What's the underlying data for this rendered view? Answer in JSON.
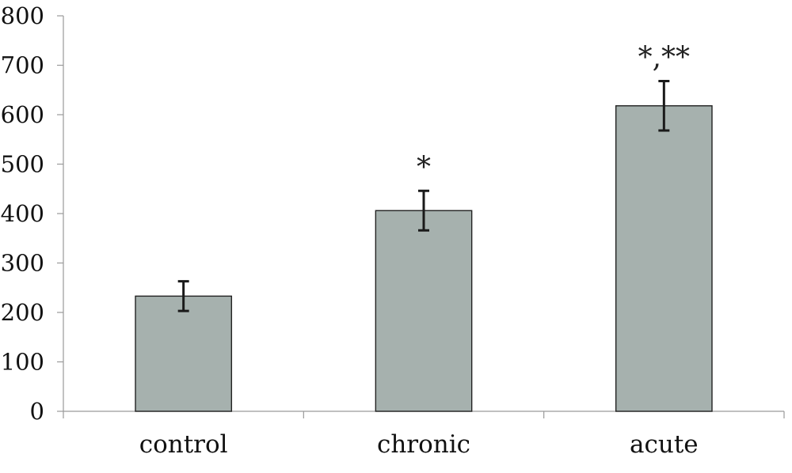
{
  "chart_data": {
    "type": "bar",
    "title": "",
    "xlabel": "",
    "ylabel": "",
    "ylim": [
      0,
      800
    ],
    "yticks": [
      0,
      100,
      200,
      300,
      400,
      500,
      600,
      700,
      800
    ],
    "ytick_labels": [
      "0",
      "100",
      "200",
      "300",
      "400",
      "500",
      "600",
      "700",
      "800"
    ],
    "categories": [
      "control",
      "chronic",
      "acute"
    ],
    "values": [
      233,
      406,
      618
    ],
    "error": [
      30,
      40,
      50
    ],
    "annotations": [
      "",
      "*",
      "*,**"
    ],
    "bar_color": "#a6b1ae",
    "grid": false,
    "legend": "none"
  }
}
